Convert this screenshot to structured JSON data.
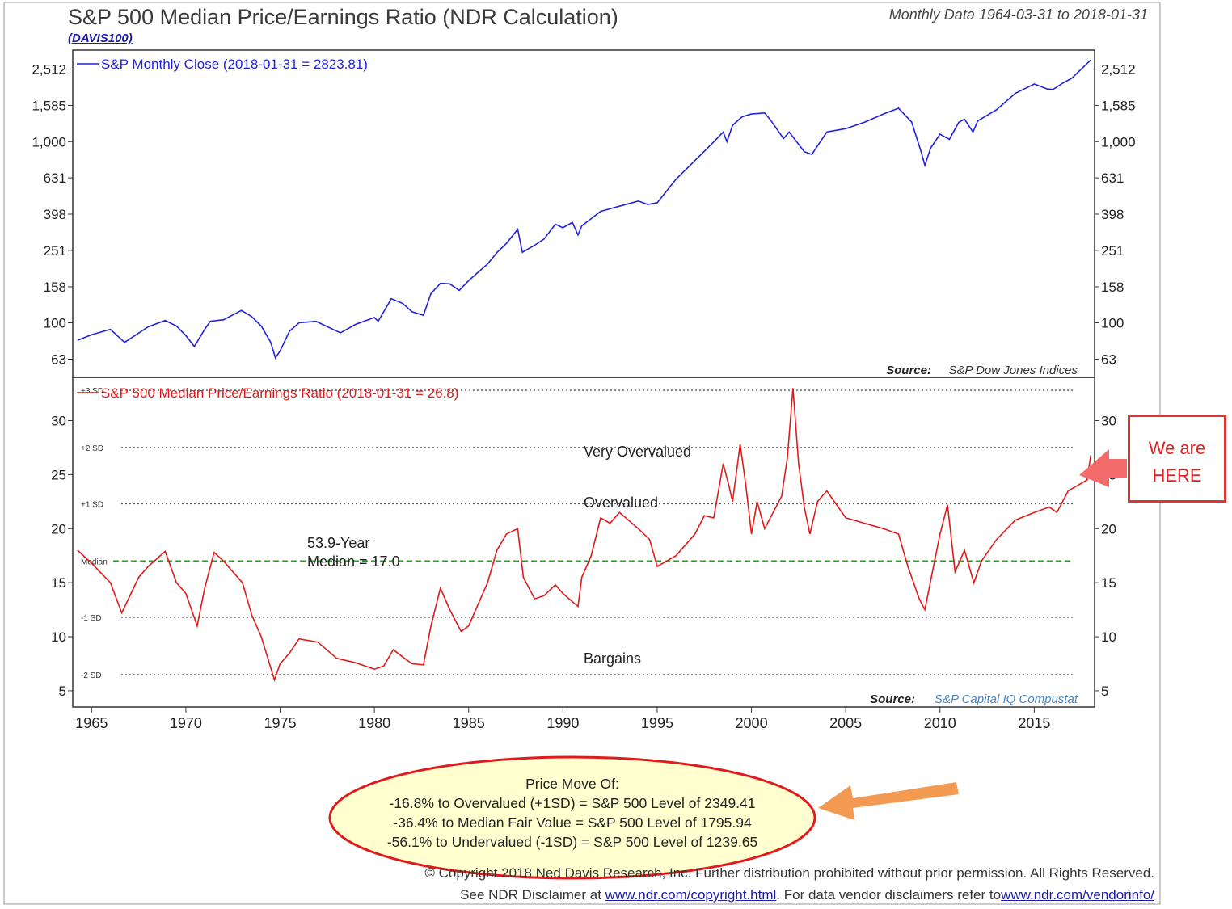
{
  "header": {
    "title": "S&P 500 Median Price/Earnings Ratio (NDR Calculation)",
    "ticker": "(DAVIS100)",
    "subtitle": "Monthly Data 1964-03-31 to 2018-01-31"
  },
  "colors": {
    "price": "#2222dd",
    "pe": "#e01b1b",
    "median": "#2a9a2a",
    "sd": "#555555",
    "arrow_orange": "#f39a52",
    "arrow_red": "#f46b6b",
    "ellipse_stroke": "#e01b1b",
    "ellipse_fill": "#ffffd0"
  },
  "chart_data": [
    {
      "type": "line",
      "title": "",
      "legend": "S&P Monthly Close (2018-01-31 = 2823.81)",
      "scale": "log",
      "y_ticks": [
        63,
        100,
        158,
        251,
        398,
        631,
        1000,
        1585,
        2512
      ],
      "y_tick_labels": [
        "63",
        "100",
        "158",
        "251",
        "398",
        "631",
        "1,000",
        "1,585",
        "2,512"
      ],
      "ylim": [
        50,
        3200
      ],
      "source_label": "Source:",
      "source": "S&P Dow Jones Indices",
      "series": [
        {
          "name": "S&P Monthly Close",
          "x": [
            1964.25,
            1965.0,
            1966.0,
            1966.75,
            1968.0,
            1968.9,
            1969.5,
            1970.0,
            1970.45,
            1971.0,
            1971.3,
            1972.0,
            1972.95,
            1973.5,
            1974.0,
            1974.5,
            1974.75,
            1975.0,
            1975.5,
            1976.0,
            1976.9,
            1978.0,
            1978.2,
            1979.0,
            1980.0,
            1980.2,
            1980.9,
            1981.5,
            1982.0,
            1982.6,
            1983.0,
            1983.5,
            1984.0,
            1984.5,
            1985.0,
            1985.5,
            1986.0,
            1986.5,
            1987.0,
            1987.6,
            1987.85,
            1988.5,
            1989.0,
            1989.6,
            1990.0,
            1990.5,
            1990.8,
            1991.0,
            1992.0,
            1993.0,
            1994.0,
            1994.5,
            1995.0,
            1996.0,
            1997.0,
            1997.8,
            1998.5,
            1998.7,
            1999.0,
            1999.5,
            2000.0,
            2000.7,
            2001.0,
            2001.7,
            2002.0,
            2002.8,
            2003.2,
            2004.0,
            2005.0,
            2006.0,
            2007.0,
            2007.8,
            2008.5,
            2009.0,
            2009.2,
            2009.5,
            2010.0,
            2010.5,
            2011.0,
            2011.3,
            2011.75,
            2012.0,
            2013.0,
            2014.0,
            2015.0,
            2015.7,
            2016.0,
            2016.5,
            2017.0,
            2018.0
          ],
          "values": [
            80,
            86,
            92,
            78,
            95,
            103,
            96,
            85,
            74,
            92,
            102,
            104,
            117,
            108,
            96,
            78,
            64,
            70,
            90,
            100,
            102,
            90,
            88,
            98,
            107,
            102,
            136,
            128,
            115,
            110,
            145,
            165,
            164,
            151,
            171,
            190,
            211,
            244,
            274,
            328,
            245,
            268,
            290,
            350,
            335,
            358,
            305,
            343,
            412,
            440,
            470,
            450,
            460,
            620,
            786,
            950,
            1130,
            1000,
            1230,
            1370,
            1420,
            1440,
            1320,
            1040,
            1130,
            880,
            850,
            1130,
            1180,
            1280,
            1420,
            1530,
            1280,
            880,
            740,
            920,
            1100,
            1030,
            1280,
            1330,
            1130,
            1300,
            1500,
            1850,
            2080,
            1950,
            1940,
            2100,
            2240,
            2823.81
          ]
        }
      ]
    },
    {
      "type": "line",
      "title": "",
      "legend": "S&P 500 Median Price/Earnings Ratio (2018-01-31 = 26.8)",
      "y_ticks": [
        5,
        10,
        15,
        20,
        25,
        30
      ],
      "ylim": [
        3.5,
        34
      ],
      "median": 17.0,
      "median_label": "Median",
      "median_note": [
        "53.9-Year",
        "Median = 17.0"
      ],
      "sd_lines": [
        {
          "label": "+3 SD",
          "value": 32.8
        },
        {
          "label": "+2 SD",
          "value": 27.5
        },
        {
          "label": "+1 SD",
          "value": 22.3
        },
        {
          "label": "-1 SD",
          "value": 11.8
        },
        {
          "label": "-2 SD",
          "value": 6.5
        }
      ],
      "zone_labels": [
        "Very Overvalued",
        "Overvalued",
        "Bargains"
      ],
      "source_label": "Source:",
      "source": "S&P Capital IQ Compustat",
      "x_ticks": [
        1965,
        1970,
        1975,
        1980,
        1985,
        1990,
        1995,
        2000,
        2005,
        2010,
        2015
      ],
      "series": [
        {
          "name": "S&P 500 Median Price/Earnings Ratio",
          "x": [
            1964.25,
            1965.0,
            1966.0,
            1966.6,
            1967.5,
            1968.0,
            1968.9,
            1969.5,
            1970.0,
            1970.6,
            1971.0,
            1971.5,
            1972.0,
            1972.5,
            1973.0,
            1973.5,
            1974.0,
            1974.7,
            1975.0,
            1975.5,
            1976.0,
            1977.0,
            1978.0,
            1979.0,
            1980.0,
            1980.5,
            1981.0,
            1981.6,
            1982.0,
            1982.6,
            1983.0,
            1983.5,
            1984.0,
            1984.6,
            1985.0,
            1985.5,
            1986.0,
            1986.5,
            1987.0,
            1987.6,
            1987.9,
            1988.5,
            1989.0,
            1989.6,
            1990.0,
            1990.8,
            1991.0,
            1991.5,
            1992.0,
            1992.5,
            1993.0,
            1994.0,
            1994.6,
            1995.0,
            1996.0,
            1997.0,
            1997.5,
            1998.0,
            1998.5,
            1998.8,
            1999.0,
            1999.4,
            1999.7,
            2000.0,
            2000.3,
            2000.7,
            2001.0,
            2001.6,
            2001.9,
            2002.2,
            2002.5,
            2002.8,
            2003.1,
            2003.5,
            2004.0,
            2005.0,
            2006.0,
            2007.0,
            2007.8,
            2008.3,
            2008.9,
            2009.2,
            2009.6,
            2010.0,
            2010.4,
            2010.8,
            2011.3,
            2011.8,
            2012.2,
            2013.0,
            2014.0,
            2015.0,
            2015.8,
            2016.2,
            2016.8,
            2017.3,
            2017.8,
            2018.0
          ],
          "values": [
            18.0,
            16.8,
            15.0,
            12.2,
            15.5,
            16.5,
            17.9,
            15.0,
            14.0,
            11.0,
            14.5,
            17.8,
            17.0,
            16.0,
            15.0,
            12.0,
            10.0,
            6.0,
            7.5,
            8.5,
            9.8,
            9.5,
            8.0,
            7.6,
            7.0,
            7.3,
            8.8,
            8.0,
            7.5,
            7.4,
            11.0,
            14.5,
            12.5,
            10.5,
            11.0,
            13.0,
            15.0,
            18.0,
            19.5,
            20.0,
            15.5,
            13.5,
            13.8,
            14.8,
            14.0,
            12.8,
            15.5,
            17.5,
            21.0,
            20.5,
            21.5,
            20.0,
            19.0,
            16.5,
            17.5,
            19.5,
            21.2,
            21.0,
            26.0,
            24.0,
            22.5,
            27.8,
            24.0,
            19.5,
            22.5,
            20.0,
            21.0,
            23.0,
            26.5,
            33.0,
            26.0,
            22.0,
            19.5,
            22.5,
            23.5,
            21.0,
            20.5,
            20.0,
            19.5,
            16.5,
            13.5,
            12.5,
            16.0,
            19.5,
            22.2,
            16.0,
            18.0,
            15.0,
            17.0,
            19.0,
            20.8,
            21.5,
            22.0,
            21.5,
            23.5,
            24.0,
            24.5,
            26.8
          ]
        }
      ]
    }
  ],
  "annotations": {
    "here_box": [
      "We are",
      "HERE"
    ],
    "price_move_lines": [
      "Price Move Of:",
      "-16.8% to Overvalued (+1SD) = S&P 500 Level of 2349.41",
      "-36.4% to Median Fair Value = S&P 500 Level of 1795.94",
      "-56.1% to Undervalued (-1SD) = S&P 500 Level of 1239.65"
    ]
  },
  "footer": {
    "copyright": "© Copyright 2018 Ned Davis Research, Inc. Further distribution prohibited without prior permission. All Rights Reserved.",
    "disclaimer_prefix": "See NDR Disclaimer at ",
    "disclaimer_link1": "www.ndr.com/copyright.html",
    "disclaimer_middle": ". For data vendor disclaimers refer to",
    "disclaimer_link2": "www.ndr.com/vendorinfo/"
  }
}
